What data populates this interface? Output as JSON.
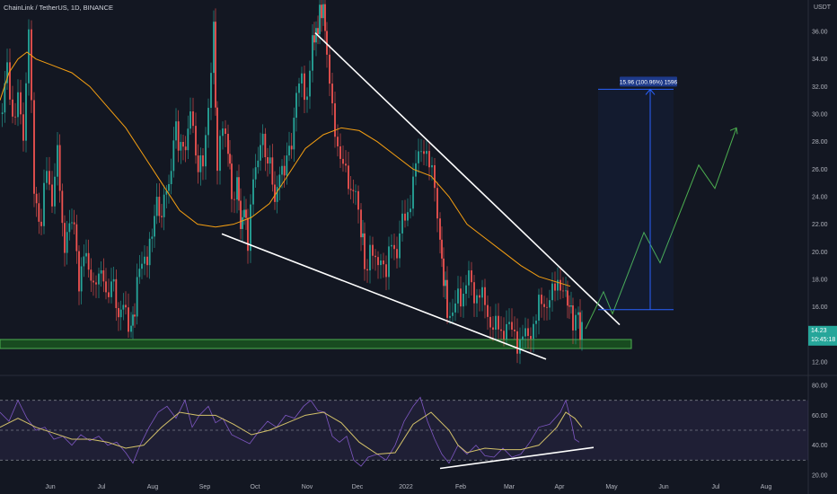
{
  "chart_data": {
    "type": "candlestick",
    "title": "ChainLink / TetherUS, 1D, BINANCE",
    "currency": "USDT",
    "price_axis": {
      "ylim": [
        10.8,
        38.0
      ],
      "ticks": [
        "12.00",
        "14.00",
        "16.00",
        "18.00",
        "20.00",
        "22.00",
        "24.00",
        "26.00",
        "28.00",
        "30.00",
        "32.00",
        "34.00",
        "36.00"
      ]
    },
    "rsi_axis": {
      "ylim": [
        15,
        88
      ],
      "ticks": [
        "20.00",
        "40.00",
        "60.00",
        "80.00"
      ]
    },
    "time_axis": [
      "Jun",
      "Jul",
      "Aug",
      "Sep",
      "Oct",
      "Nov",
      "Dec",
      "2022",
      "Feb",
      "Mar",
      "Apr",
      "May",
      "Jun",
      "Jul",
      "Aug"
    ],
    "price_path": [
      [
        0,
        30
      ],
      [
        8,
        33
      ],
      [
        14,
        30
      ],
      [
        20,
        31
      ],
      [
        26,
        28
      ],
      [
        32,
        37
      ],
      [
        38,
        24
      ],
      [
        46,
        22
      ],
      [
        52,
        26
      ],
      [
        58,
        24
      ],
      [
        64,
        27
      ],
      [
        72,
        20
      ],
      [
        80,
        23
      ],
      [
        88,
        18
      ],
      [
        96,
        20
      ],
      [
        104,
        17
      ],
      [
        110,
        19
      ],
      [
        118,
        17
      ],
      [
        124,
        18
      ],
      [
        132,
        15.5
      ],
      [
        140,
        16
      ],
      [
        146,
        14.3
      ],
      [
        150,
        16
      ],
      [
        158,
        20
      ],
      [
        164,
        19
      ],
      [
        172,
        23
      ],
      [
        180,
        23
      ],
      [
        188,
        25
      ],
      [
        196,
        29
      ],
      [
        204,
        27
      ],
      [
        212,
        30
      ],
      [
        218,
        27
      ],
      [
        226,
        26
      ],
      [
        232,
        31
      ],
      [
        238,
        36
      ],
      [
        242,
        26
      ],
      [
        248,
        29
      ],
      [
        254,
        28
      ],
      [
        258,
        24
      ],
      [
        264,
        25
      ],
      [
        268,
        22
      ],
      [
        272,
        23
      ],
      [
        276,
        21
      ],
      [
        282,
        25
      ],
      [
        290,
        28
      ],
      [
        298,
        27
      ],
      [
        306,
        24
      ],
      [
        314,
        26
      ],
      [
        322,
        27
      ],
      [
        330,
        31
      ],
      [
        336,
        33
      ],
      [
        342,
        31
      ],
      [
        348,
        35
      ],
      [
        352,
        36
      ],
      [
        356,
        37
      ],
      [
        360,
        38
      ],
      [
        364,
        34
      ],
      [
        370,
        30
      ],
      [
        376,
        28
      ],
      [
        382,
        26
      ],
      [
        388,
        25
      ],
      [
        396,
        24
      ],
      [
        402,
        22
      ],
      [
        406,
        19
      ],
      [
        412,
        20
      ],
      [
        418,
        19
      ],
      [
        424,
        20
      ],
      [
        430,
        18
      ],
      [
        436,
        21
      ],
      [
        442,
        20
      ],
      [
        448,
        22
      ],
      [
        454,
        23
      ],
      [
        460,
        25
      ],
      [
        466,
        27
      ],
      [
        472,
        28
      ],
      [
        478,
        26
      ],
      [
        484,
        25
      ],
      [
        490,
        21
      ],
      [
        494,
        18
      ],
      [
        498,
        16
      ],
      [
        504,
        15
      ],
      [
        510,
        17
      ],
      [
        516,
        17
      ],
      [
        522,
        18
      ],
      [
        528,
        17
      ],
      [
        534,
        17
      ],
      [
        540,
        16
      ],
      [
        546,
        15
      ],
      [
        552,
        14.5
      ],
      [
        558,
        14
      ],
      [
        564,
        15
      ],
      [
        570,
        14
      ],
      [
        576,
        13.5
      ],
      [
        582,
        14
      ],
      [
        588,
        13.5
      ],
      [
        594,
        15
      ],
      [
        600,
        16
      ],
      [
        606,
        16
      ],
      [
        612,
        17
      ],
      [
        618,
        17
      ],
      [
        624,
        18
      ],
      [
        630,
        17
      ],
      [
        634,
        16
      ],
      [
        638,
        15
      ],
      [
        644,
        15
      ],
      [
        648,
        14.2
      ]
    ],
    "ma_path": [
      [
        0,
        31
      ],
      [
        10,
        33
      ],
      [
        20,
        34
      ],
      [
        30,
        34.5
      ],
      [
        40,
        34
      ],
      [
        60,
        33.5
      ],
      [
        80,
        33
      ],
      [
        100,
        32
      ],
      [
        120,
        30.5
      ],
      [
        140,
        29
      ],
      [
        160,
        27
      ],
      [
        180,
        25
      ],
      [
        200,
        23
      ],
      [
        220,
        22
      ],
      [
        240,
        21.8
      ],
      [
        260,
        22
      ],
      [
        280,
        22.5
      ],
      [
        300,
        23.5
      ],
      [
        320,
        25.5
      ],
      [
        340,
        27.5
      ],
      [
        360,
        28.5
      ],
      [
        380,
        29
      ],
      [
        400,
        28.8
      ],
      [
        420,
        28
      ],
      [
        440,
        27
      ],
      [
        460,
        26
      ],
      [
        480,
        25.5
      ],
      [
        500,
        24
      ],
      [
        520,
        22
      ],
      [
        540,
        21
      ],
      [
        560,
        20
      ],
      [
        580,
        19
      ],
      [
        600,
        18.2
      ],
      [
        620,
        17.8
      ],
      [
        635,
        17.5
      ]
    ],
    "price_current": "14.23",
    "countdown": "10:45:18",
    "measure_label": "15.96 (100.96%) 1596",
    "rsi_path": [
      [
        0,
        62
      ],
      [
        10,
        56
      ],
      [
        20,
        70
      ],
      [
        30,
        58
      ],
      [
        40,
        50
      ],
      [
        50,
        52
      ],
      [
        60,
        44
      ],
      [
        70,
        46
      ],
      [
        80,
        40
      ],
      [
        90,
        47
      ],
      [
        100,
        43
      ],
      [
        110,
        46
      ],
      [
        120,
        40
      ],
      [
        130,
        42
      ],
      [
        140,
        35
      ],
      [
        148,
        28
      ],
      [
        156,
        40
      ],
      [
        166,
        52
      ],
      [
        176,
        62
      ],
      [
        186,
        66
      ],
      [
        196,
        58
      ],
      [
        206,
        70
      ],
      [
        214,
        52
      ],
      [
        222,
        60
      ],
      [
        232,
        66
      ],
      [
        240,
        55
      ],
      [
        248,
        58
      ],
      [
        258,
        47
      ],
      [
        268,
        44
      ],
      [
        278,
        41
      ],
      [
        288,
        49
      ],
      [
        298,
        56
      ],
      [
        308,
        52
      ],
      [
        318,
        60
      ],
      [
        328,
        58
      ],
      [
        338,
        66
      ],
      [
        346,
        70
      ],
      [
        354,
        63
      ],
      [
        362,
        62
      ],
      [
        370,
        46
      ],
      [
        378,
        42
      ],
      [
        386,
        46
      ],
      [
        394,
        30
      ],
      [
        402,
        26
      ],
      [
        410,
        32
      ],
      [
        420,
        34
      ],
      [
        430,
        30
      ],
      [
        440,
        40
      ],
      [
        450,
        56
      ],
      [
        460,
        66
      ],
      [
        468,
        72
      ],
      [
        476,
        56
      ],
      [
        484,
        44
      ],
      [
        492,
        34
      ],
      [
        500,
        28
      ],
      [
        510,
        40
      ],
      [
        520,
        34
      ],
      [
        530,
        40
      ],
      [
        540,
        33
      ],
      [
        550,
        32
      ],
      [
        560,
        38
      ],
      [
        570,
        32
      ],
      [
        580,
        34
      ],
      [
        590,
        42
      ],
      [
        600,
        52
      ],
      [
        612,
        54
      ],
      [
        624,
        62
      ],
      [
        630,
        70
      ],
      [
        636,
        56
      ],
      [
        640,
        44
      ],
      [
        645,
        42
      ]
    ],
    "rsi_ma_path": [
      [
        0,
        52
      ],
      [
        20,
        58
      ],
      [
        40,
        52
      ],
      [
        60,
        48
      ],
      [
        80,
        44
      ],
      [
        100,
        44
      ],
      [
        120,
        42
      ],
      [
        140,
        38
      ],
      [
        160,
        40
      ],
      [
        180,
        52
      ],
      [
        200,
        62
      ],
      [
        220,
        60
      ],
      [
        240,
        60
      ],
      [
        260,
        54
      ],
      [
        280,
        47
      ],
      [
        300,
        50
      ],
      [
        320,
        55
      ],
      [
        340,
        60
      ],
      [
        360,
        62
      ],
      [
        380,
        55
      ],
      [
        400,
        42
      ],
      [
        420,
        34
      ],
      [
        440,
        35
      ],
      [
        460,
        54
      ],
      [
        480,
        62
      ],
      [
        500,
        50
      ],
      [
        510,
        40
      ],
      [
        520,
        35
      ],
      [
        540,
        38
      ],
      [
        560,
        37
      ],
      [
        580,
        37
      ],
      [
        600,
        40
      ],
      [
        620,
        52
      ],
      [
        630,
        62
      ],
      [
        640,
        58
      ],
      [
        648,
        52
      ]
    ]
  }
}
